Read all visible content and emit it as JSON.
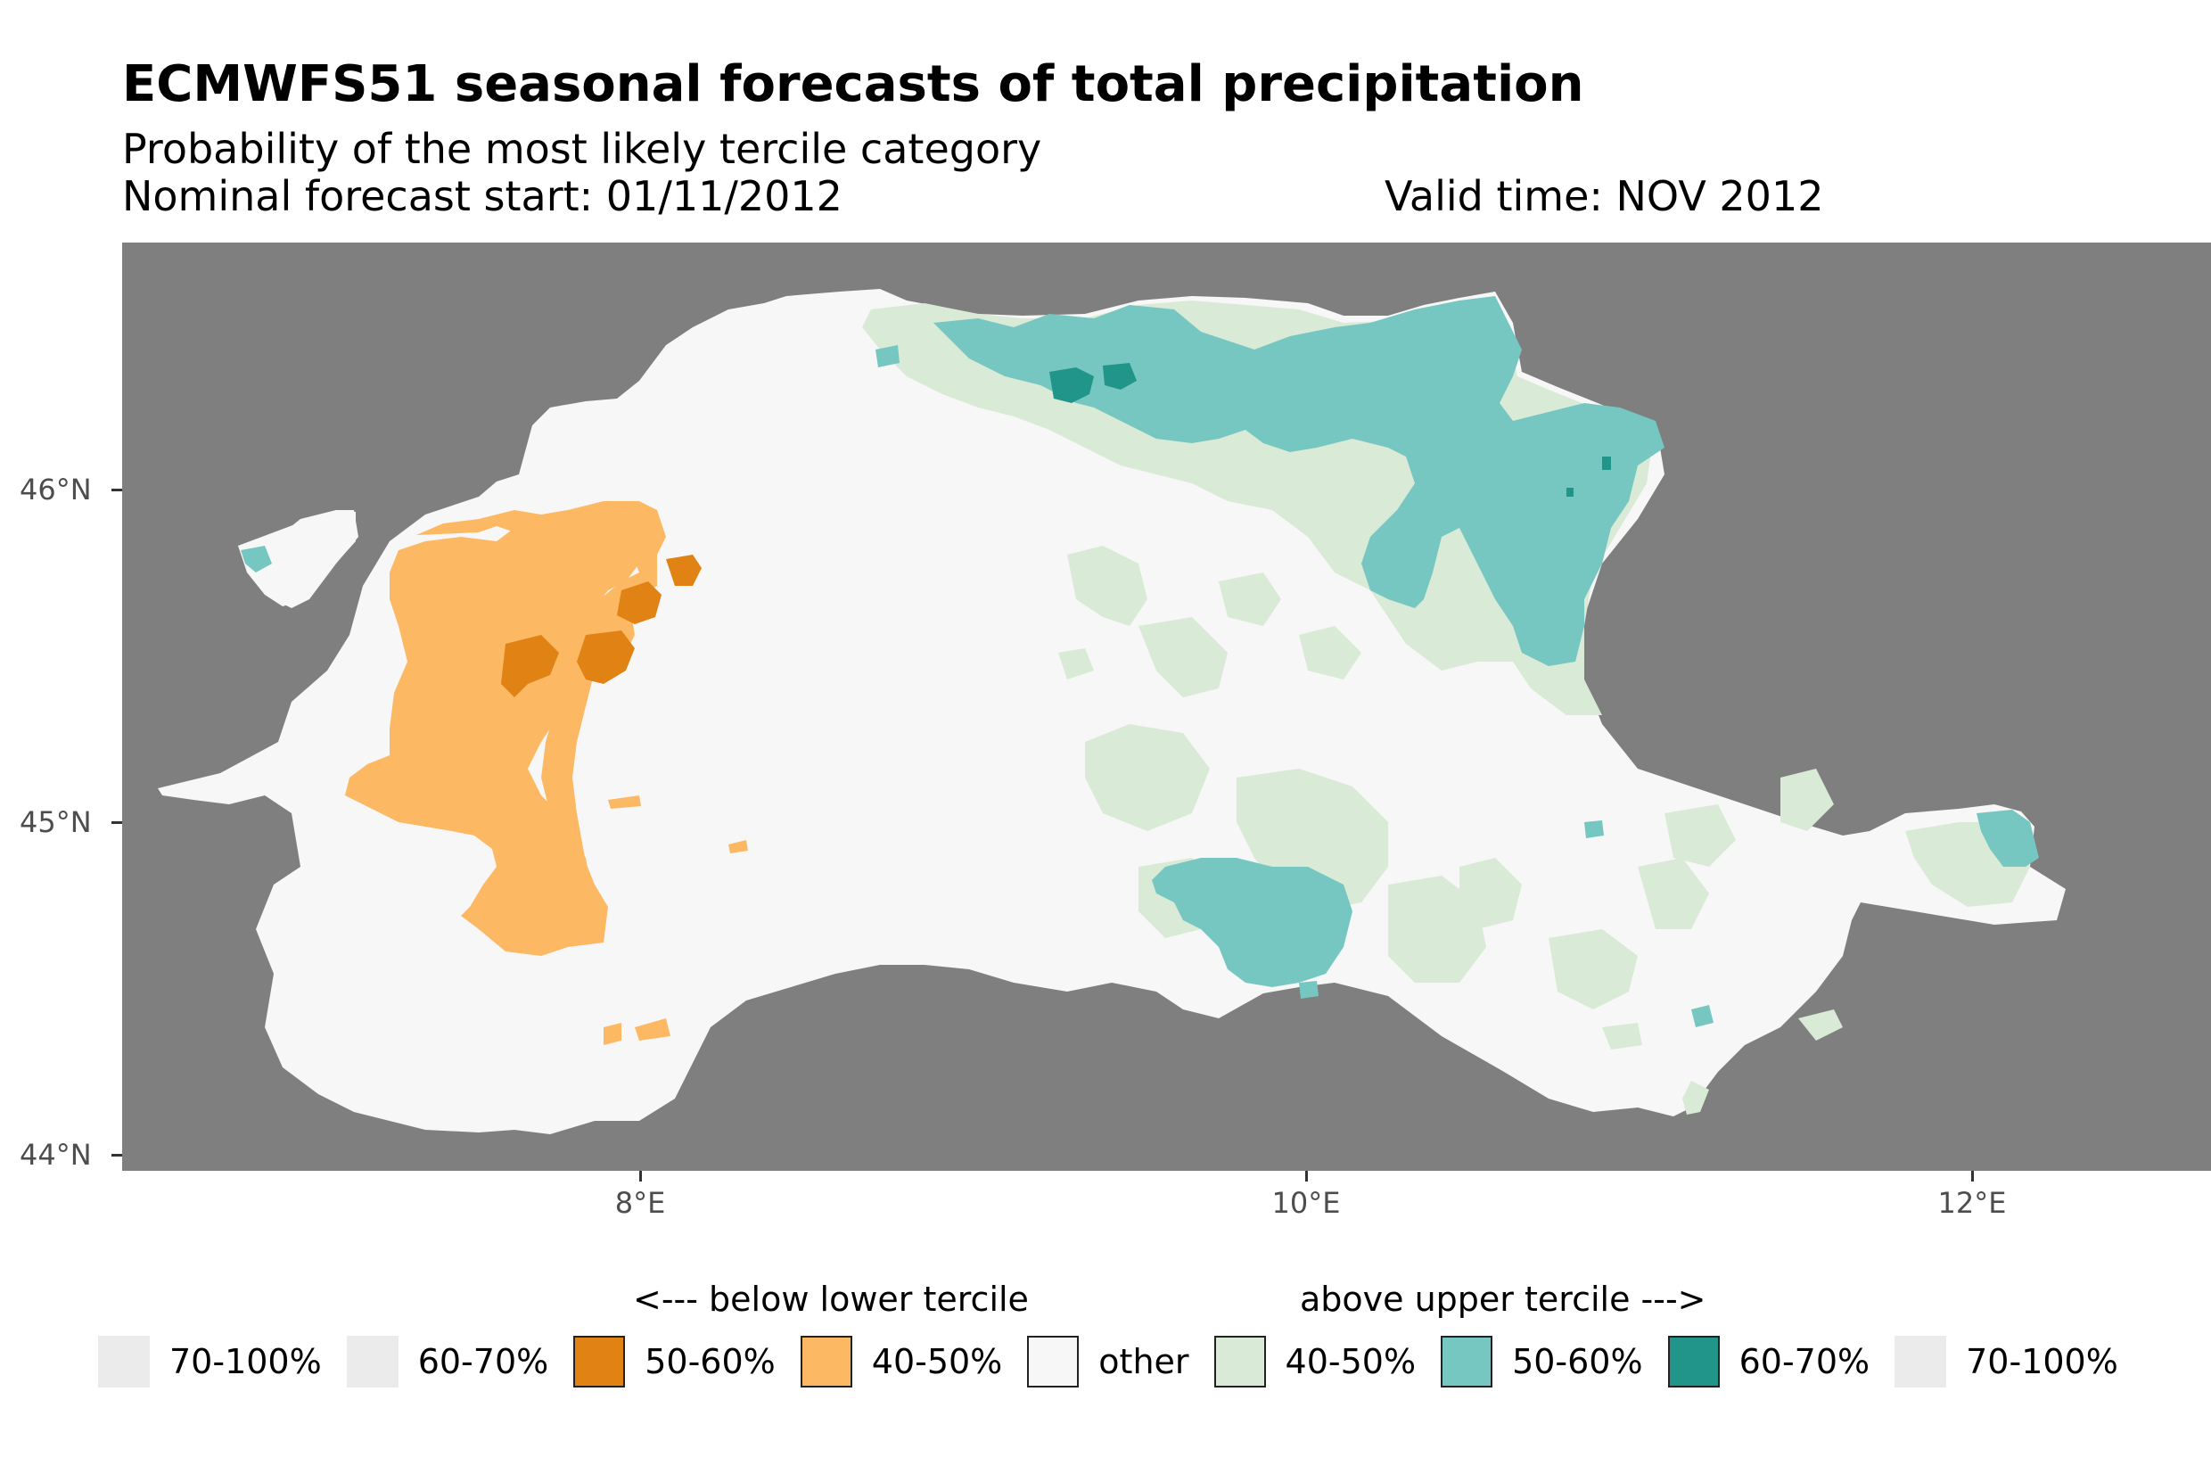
{
  "title": "ECMWFS51 seasonal forecasts of total precipitation",
  "subtitle": "Probability of the most likely tercile category",
  "forecast_start": "Nominal forecast start: 01/11/2012",
  "valid_time": "Valid time: NOV 2012",
  "axes": {
    "y_ticks": [
      "46°N",
      "45°N",
      "44°N"
    ],
    "x_ticks": [
      "8°E",
      "10°E",
      "12°E"
    ]
  },
  "colors": {
    "background": "#7f7f7f",
    "other": "#f7f7f7",
    "below_40_50": "#fdb863",
    "below_50_60": "#e08214",
    "below_60_70": "#ebebeb",
    "below_70_100": "#ebebeb",
    "above_40_50": "#d9ead6",
    "above_50_60": "#76c6c1",
    "above_60_70": "#21958a",
    "above_70_100": "#ebebeb"
  },
  "legend": {
    "below_header": "<--- below lower tercile",
    "above_header": "above upper tercile --->",
    "items": [
      {
        "label": "70-100%",
        "color": "#ebebeb",
        "border": false
      },
      {
        "label": "60-70%",
        "color": "#ebebeb",
        "border": false
      },
      {
        "label": "50-60%",
        "color": "#e08214",
        "border": true
      },
      {
        "label": "40-50%",
        "color": "#fdb863",
        "border": true
      },
      {
        "label": "other",
        "color": "#f7f7f7",
        "border": true
      },
      {
        "label": "40-50%",
        "color": "#d9ead6",
        "border": true
      },
      {
        "label": "50-60%",
        "color": "#76c6c1",
        "border": true
      },
      {
        "label": "60-70%",
        "color": "#21958a",
        "border": true
      },
      {
        "label": "70-100%",
        "color": "#ebebeb",
        "border": false
      }
    ]
  }
}
